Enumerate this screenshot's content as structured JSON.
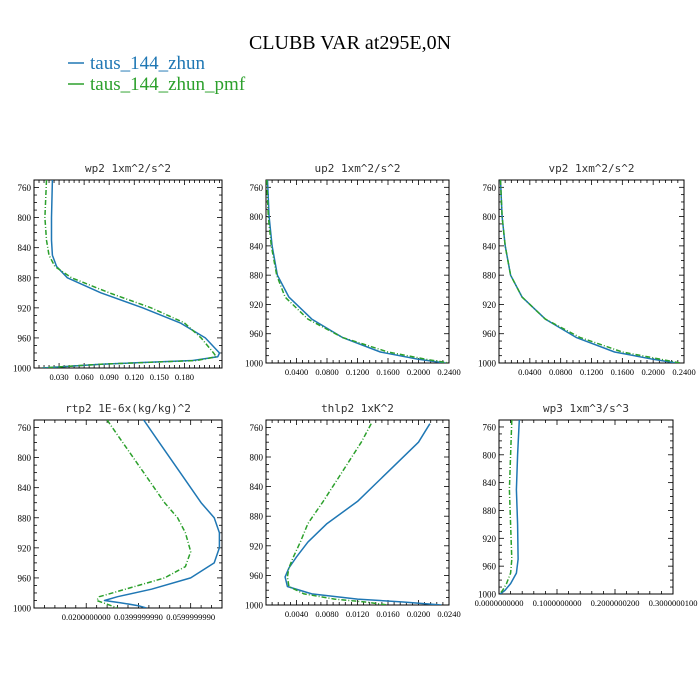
{
  "figure": {
    "title": "CLUBB VAR at295E,0N",
    "legend": [
      {
        "label": "taus_144_zhun",
        "color": "#1f77b4"
      },
      {
        "label": "taus_144_zhun_pmf",
        "color": "#2ca02c"
      }
    ]
  },
  "chart_data": [
    {
      "type": "line",
      "title": "wp2   1xm^2/s^2",
      "xlim": [
        0.0,
        0.225
      ],
      "ylim": [
        1000,
        750
      ],
      "xticks": [
        0.03,
        0.06,
        0.09,
        0.12,
        0.15,
        0.18
      ],
      "xtick_labels": [
        "0.030",
        "0.060",
        "0.090",
        "0.120",
        "0.150",
        "0.180"
      ],
      "yticks": [
        760,
        800,
        840,
        880,
        920,
        960,
        1000
      ],
      "ytick_labels": [
        "760",
        "800",
        "840",
        "880",
        "920",
        "960",
        "1000"
      ],
      "series": [
        {
          "name": "taus_144_zhun",
          "color": "#1f77b4",
          "dashed": false,
          "points": [
            [
              0.022,
              750
            ],
            [
              0.021,
              800
            ],
            [
              0.021,
              830
            ],
            [
              0.022,
              850
            ],
            [
              0.027,
              865
            ],
            [
              0.04,
              880
            ],
            [
              0.08,
              900
            ],
            [
              0.13,
              920
            ],
            [
              0.175,
              940
            ],
            [
              0.205,
              960
            ],
            [
              0.222,
              980
            ],
            [
              0.22,
              985
            ],
            [
              0.19,
              990
            ],
            [
              0.08,
              995
            ],
            [
              0.01,
              1000
            ]
          ]
        },
        {
          "name": "taus_144_zhun_pmf",
          "color": "#2ca02c",
          "dashed": true,
          "points": [
            [
              0.015,
              750
            ],
            [
              0.013,
              800
            ],
            [
              0.015,
              830
            ],
            [
              0.018,
              850
            ],
            [
              0.025,
              865
            ],
            [
              0.045,
              880
            ],
            [
              0.09,
              900
            ],
            [
              0.14,
              920
            ],
            [
              0.18,
              940
            ],
            [
              0.2,
              960
            ],
            [
              0.215,
              980
            ],
            [
              0.218,
              985
            ],
            [
              0.195,
              990
            ],
            [
              0.08,
              995
            ],
            [
              0.01,
              1000
            ]
          ]
        }
      ]
    },
    {
      "type": "line",
      "title": "up2   1xm^2/s^2",
      "xlim": [
        0.0,
        0.24
      ],
      "ylim": [
        1000,
        750
      ],
      "xticks": [
        0.04,
        0.08,
        0.12,
        0.16,
        0.2,
        0.24
      ],
      "xtick_labels": [
        "0.0400",
        "0.0800",
        "0.1200",
        "0.1600",
        "0.2000",
        "0.2400"
      ],
      "yticks": [
        760,
        800,
        840,
        880,
        920,
        960,
        1000
      ],
      "ytick_labels": [
        "760",
        "800",
        "840",
        "880",
        "920",
        "960",
        "1000"
      ],
      "series": [
        {
          "name": "taus_144_zhun",
          "color": "#1f77b4",
          "dashed": false,
          "points": [
            [
              0.002,
              750
            ],
            [
              0.004,
              800
            ],
            [
              0.008,
              840
            ],
            [
              0.015,
              880
            ],
            [
              0.03,
              910
            ],
            [
              0.06,
              940
            ],
            [
              0.1,
              965
            ],
            [
              0.15,
              985
            ],
            [
              0.2,
              995
            ],
            [
              0.235,
              1000
            ]
          ]
        },
        {
          "name": "taus_144_zhun_pmf",
          "color": "#2ca02c",
          "dashed": true,
          "points": [
            [
              0.001,
              750
            ],
            [
              0.003,
              800
            ],
            [
              0.007,
              840
            ],
            [
              0.014,
              880
            ],
            [
              0.025,
              910
            ],
            [
              0.055,
              940
            ],
            [
              0.1,
              965
            ],
            [
              0.16,
              985
            ],
            [
              0.21,
              995
            ],
            [
              0.24,
              1000
            ]
          ]
        }
      ]
    },
    {
      "type": "line",
      "title": "vp2   1xm^2/s^2",
      "xlim": [
        0.0,
        0.24
      ],
      "ylim": [
        1000,
        750
      ],
      "xticks": [
        0.04,
        0.08,
        0.12,
        0.16,
        0.2,
        0.24
      ],
      "xtick_labels": [
        "0.0400",
        "0.0800",
        "0.1200",
        "0.1600",
        "0.2000",
        "0.2400"
      ],
      "yticks": [
        760,
        800,
        840,
        880,
        920,
        960,
        1000
      ],
      "ytick_labels": [
        "760",
        "800",
        "840",
        "880",
        "920",
        "960",
        "1000"
      ],
      "series": [
        {
          "name": "taus_144_zhun",
          "color": "#1f77b4",
          "dashed": false,
          "points": [
            [
              0.002,
              750
            ],
            [
              0.004,
              800
            ],
            [
              0.008,
              840
            ],
            [
              0.015,
              880
            ],
            [
              0.03,
              910
            ],
            [
              0.06,
              940
            ],
            [
              0.1,
              965
            ],
            [
              0.15,
              985
            ],
            [
              0.2,
              995
            ],
            [
              0.23,
              1000
            ]
          ]
        },
        {
          "name": "taus_144_zhun_pmf",
          "color": "#2ca02c",
          "dashed": true,
          "points": [
            [
              0.002,
              750
            ],
            [
              0.004,
              800
            ],
            [
              0.008,
              840
            ],
            [
              0.015,
              880
            ],
            [
              0.03,
              910
            ],
            [
              0.06,
              940
            ],
            [
              0.105,
              965
            ],
            [
              0.16,
              985
            ],
            [
              0.21,
              995
            ],
            [
              0.235,
              1000
            ]
          ]
        }
      ]
    },
    {
      "type": "line",
      "title": "rtp2   1E-6x(kg/kg)^2",
      "xlim": [
        0.0,
        0.072
      ],
      "ylim": [
        1000,
        750
      ],
      "xticks": [
        0.02,
        0.04,
        0.06
      ],
      "xtick_labels": [
        "0.0200000000",
        "0.0399999990",
        "0.0599999990"
      ],
      "yticks": [
        760,
        800,
        840,
        880,
        920,
        960,
        1000
      ],
      "ytick_labels": [
        "760",
        "800",
        "840",
        "880",
        "920",
        "960",
        "1000"
      ],
      "series": [
        {
          "name": "taus_144_zhun",
          "color": "#1f77b4",
          "dashed": false,
          "points": [
            [
              0.042,
              750
            ],
            [
              0.048,
              780
            ],
            [
              0.056,
              820
            ],
            [
              0.064,
              860
            ],
            [
              0.069,
              880
            ],
            [
              0.071,
              900
            ],
            [
              0.071,
              920
            ],
            [
              0.069,
              940
            ],
            [
              0.06,
              960
            ],
            [
              0.045,
              975
            ],
            [
              0.032,
              985
            ],
            [
              0.027,
              990
            ],
            [
              0.033,
              993
            ],
            [
              0.04,
              997
            ],
            [
              0.043,
              1000
            ]
          ]
        },
        {
          "name": "taus_144_zhun_pmf",
          "color": "#2ca02c",
          "dashed": true,
          "points": [
            [
              0.028,
              750
            ],
            [
              0.034,
              780
            ],
            [
              0.042,
              820
            ],
            [
              0.05,
              860
            ],
            [
              0.055,
              880
            ],
            [
              0.058,
              900
            ],
            [
              0.06,
              925
            ],
            [
              0.058,
              945
            ],
            [
              0.05,
              960
            ],
            [
              0.035,
              975
            ],
            [
              0.025,
              985
            ],
            [
              0.024,
              990
            ],
            [
              0.028,
              995
            ],
            [
              0.032,
              1000
            ]
          ]
        }
      ]
    },
    {
      "type": "line",
      "title": "thlp2   1xK^2",
      "xlim": [
        0.0,
        0.024
      ],
      "ylim": [
        1000,
        750
      ],
      "xticks": [
        0.004,
        0.008,
        0.012,
        0.016,
        0.02,
        0.024
      ],
      "xtick_labels": [
        "0.0040",
        "0.0080",
        "0.0120",
        "0.0160",
        "0.0200",
        "0.0240"
      ],
      "yticks": [
        760,
        800,
        840,
        880,
        920,
        960,
        1000
      ],
      "ytick_labels": [
        "760",
        "800",
        "840",
        "880",
        "920",
        "960",
        "1000"
      ],
      "series": [
        {
          "name": "taus_144_zhun",
          "color": "#1f77b4",
          "dashed": false,
          "points": [
            [
              0.0215,
              755
            ],
            [
              0.02,
              780
            ],
            [
              0.016,
              820
            ],
            [
              0.012,
              860
            ],
            [
              0.008,
              890
            ],
            [
              0.0055,
              915
            ],
            [
              0.004,
              935
            ],
            [
              0.003,
              950
            ],
            [
              0.0025,
              962
            ],
            [
              0.0028,
              975
            ],
            [
              0.006,
              985
            ],
            [
              0.012,
              992
            ],
            [
              0.018,
              996
            ],
            [
              0.023,
              1000
            ]
          ]
        },
        {
          "name": "taus_144_zhun_pmf",
          "color": "#2ca02c",
          "dashed": true,
          "points": [
            [
              0.0138,
              755
            ],
            [
              0.0125,
              780
            ],
            [
              0.01,
              820
            ],
            [
              0.0075,
              860
            ],
            [
              0.0055,
              890
            ],
            [
              0.0045,
              915
            ],
            [
              0.0036,
              935
            ],
            [
              0.003,
              950
            ],
            [
              0.0028,
              962
            ],
            [
              0.003,
              975
            ],
            [
              0.005,
              985
            ],
            [
              0.009,
              992
            ],
            [
              0.013,
              996
            ],
            [
              0.016,
              1000
            ]
          ]
        }
      ]
    },
    {
      "type": "line",
      "title": "wp3   1xm^3/s^3",
      "xlim": [
        0.0,
        0.3
      ],
      "ylim": [
        1000,
        750
      ],
      "xticks": [
        0.0,
        0.1,
        0.2,
        0.3
      ],
      "xtick_labels": [
        "0.0000000000",
        "0.1000000000",
        "0.2000000200",
        "0.3000000100"
      ],
      "yticks": [
        760,
        800,
        840,
        880,
        920,
        960,
        1000
      ],
      "ytick_labels": [
        "760",
        "800",
        "840",
        "880",
        "920",
        "960",
        "1000"
      ],
      "series": [
        {
          "name": "taus_144_zhun",
          "color": "#1f77b4",
          "dashed": false,
          "points": [
            [
              0.035,
              750
            ],
            [
              0.032,
              800
            ],
            [
              0.03,
              850
            ],
            [
              0.032,
              900
            ],
            [
              0.033,
              950
            ],
            [
              0.03,
              970
            ],
            [
              0.02,
              985
            ],
            [
              0.01,
              995
            ],
            [
              0.002,
              1000
            ]
          ]
        },
        {
          "name": "taus_144_zhun_pmf",
          "color": "#2ca02c",
          "dashed": true,
          "points": [
            [
              0.022,
              750
            ],
            [
              0.02,
              800
            ],
            [
              0.018,
              850
            ],
            [
              0.02,
              900
            ],
            [
              0.022,
              950
            ],
            [
              0.02,
              970
            ],
            [
              0.013,
              985
            ],
            [
              0.006,
              995
            ],
            [
              0.001,
              1000
            ]
          ]
        }
      ]
    }
  ]
}
